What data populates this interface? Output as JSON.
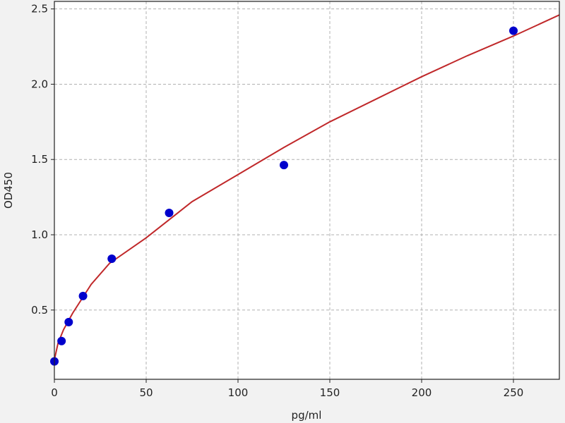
{
  "chart_data": {
    "type": "scatter",
    "title": "",
    "xlabel": "pg/ml",
    "ylabel": "OD450",
    "xlim": [
      0,
      275
    ],
    "ylim": [
      0.04,
      2.55
    ],
    "xticks": [
      0,
      50,
      100,
      150,
      200,
      250
    ],
    "yticks": [
      0.5,
      1.0,
      1.5,
      2.0,
      2.5
    ],
    "xtick_labels": [
      "0",
      "50",
      "100",
      "150",
      "200",
      "250"
    ],
    "ytick_labels": [
      "0.5",
      "1.0",
      "1.5",
      "2.0",
      "2.5"
    ],
    "grid": true,
    "series": [
      {
        "type": "scatter",
        "color": "#0000cc",
        "x": [
          0,
          3.9,
          7.8,
          15.6,
          31.25,
          62.5,
          125,
          250
        ],
        "y": [
          0.159,
          0.294,
          0.42,
          0.593,
          0.841,
          1.145,
          1.463,
          2.355
        ]
      },
      {
        "type": "line",
        "color": "#c0282a",
        "x": [
          0,
          2,
          5,
          10,
          20,
          30,
          50,
          75,
          100,
          125,
          150,
          175,
          200,
          225,
          250,
          275
        ],
        "y": [
          0.17,
          0.28,
          0.37,
          0.48,
          0.67,
          0.81,
          0.98,
          1.22,
          1.4,
          1.58,
          1.75,
          1.9,
          2.05,
          2.19,
          2.32,
          2.46
        ]
      }
    ]
  }
}
